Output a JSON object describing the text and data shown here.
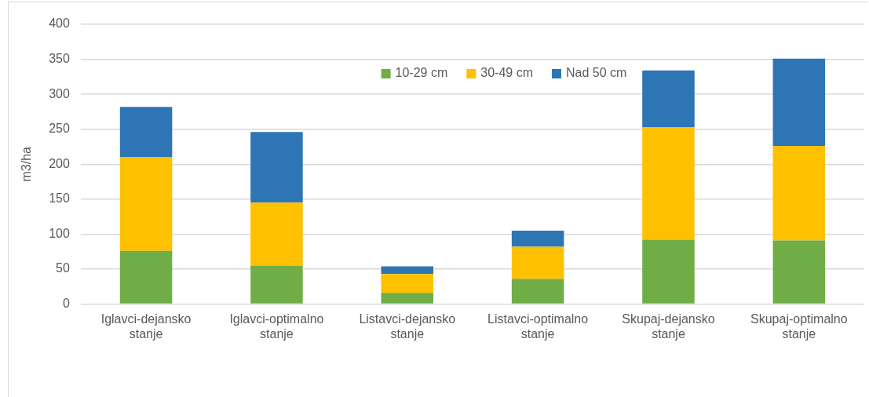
{
  "chart_data": {
    "type": "bar",
    "stacked": true,
    "ylabel": "m3/ha",
    "categories": [
      "Iglavci-dejansko stanje",
      "Iglavci-optimalno stanje",
      "Listavci-dejansko stanje",
      "Listavci-optimalno stanje",
      "Skupaj-dejansko stanje",
      "Skupaj-optimalno stanje"
    ],
    "series": [
      {
        "name": "10-29 cm",
        "color": "#70ad47",
        "values": [
          76,
          55,
          16,
          36,
          92,
          91
        ]
      },
      {
        "name": "30-49 cm",
        "color": "#ffc000",
        "values": [
          134,
          90,
          27,
          46,
          161,
          135
        ]
      },
      {
        "name": "Nad 50 cm",
        "color": "#2e75b6",
        "values": [
          72,
          101,
          11,
          23,
          81,
          125
        ]
      }
    ],
    "ylim": [
      0,
      400
    ],
    "yticks": [
      0,
      50,
      100,
      150,
      200,
      250,
      300,
      350,
      400
    ],
    "grid": "y",
    "legend": "top"
  }
}
